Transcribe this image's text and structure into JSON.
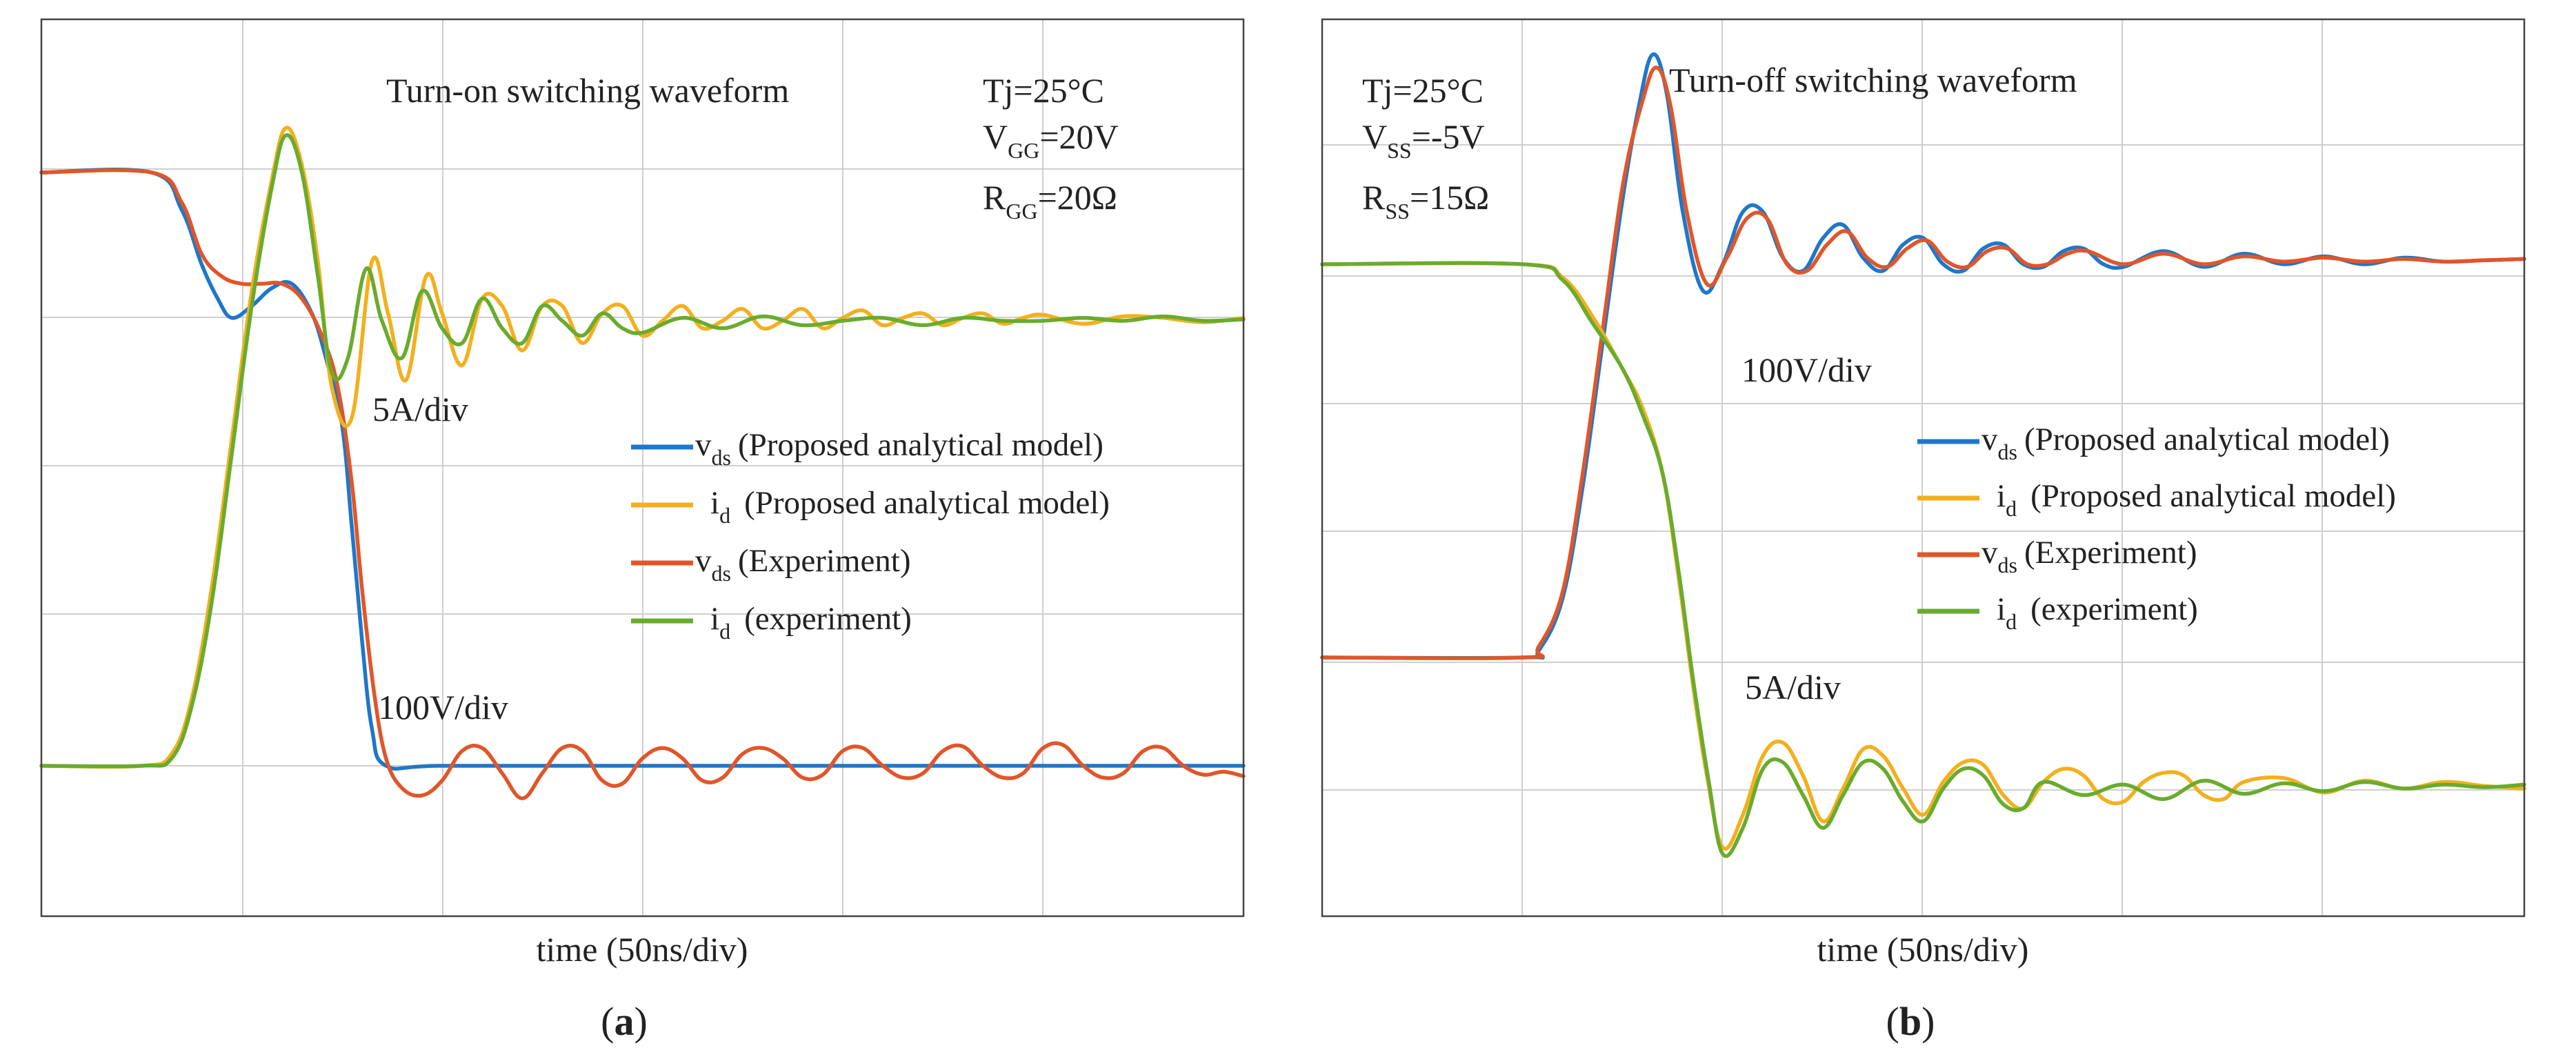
{
  "chart_data": [
    {
      "type": "line",
      "panel": "(a)",
      "panel_letter": "a",
      "title": "Turn-on switching waveform",
      "xlabel": "time (50ns/div)",
      "xlim": [
        0,
        6
      ],
      "ylim": [
        0,
        5
      ],
      "grid": true,
      "conditions": {
        "tj": "Tj=25°C",
        "gate_v": "V",
        "gate_v_sub": "GG",
        "gate_v_val": "=20V",
        "gate_r": "R",
        "gate_r_sub": "GG",
        "gate_r_val": "=20Ω"
      },
      "annotations": {
        "current_scale": "5A/div",
        "voltage_scale": "100V/div"
      },
      "legend": [
        {
          "main": "v",
          "sub": "ds",
          "desc": "(Proposed analytical model)",
          "color": "#1f77c9"
        },
        {
          "main": "i",
          "sub": "d",
          "desc": "(Proposed analytical model)",
          "color": "#f2b01e"
        },
        {
          "main": "v",
          "sub": "ds",
          "desc": "(Experiment)",
          "color": "#e0562a"
        },
        {
          "main": "i",
          "sub": "d",
          "desc": "(experiment)",
          "color": "#6aab2e"
        }
      ],
      "series": [
        {
          "name": "vds (Proposed analytical model)",
          "color": "#1f77c9",
          "x": [
            0,
            0.55,
            0.7,
            0.8,
            0.88,
            0.95,
            1.05,
            1.15,
            1.25,
            1.35,
            1.42,
            1.5,
            1.55,
            1.6,
            1.65,
            1.72,
            2,
            3,
            4,
            5,
            6
          ],
          "values": [
            4.0,
            4.0,
            3.75,
            3.38,
            3.15,
            3.02,
            3.1,
            3.22,
            3.25,
            3.05,
            2.75,
            2.3,
            1.6,
            0.85,
            0.25,
            0.0,
            0.0,
            0.0,
            0.0,
            0.0,
            0.0
          ]
        },
        {
          "name": "vds (Experiment)",
          "color": "#e0562a",
          "x": [
            0,
            0.55,
            0.7,
            0.8,
            0.9,
            1.0,
            1.1,
            1.2,
            1.3,
            1.4,
            1.48,
            1.55,
            1.6,
            1.66,
            1.72,
            1.8,
            1.9,
            2.0,
            2.1,
            2.2,
            2.3,
            2.4,
            2.5,
            2.6,
            2.7,
            2.8,
            2.9,
            3.0,
            3.1,
            3.2,
            3.3,
            3.4,
            3.5,
            3.6,
            3.7,
            3.8,
            3.9,
            4.0,
            4.1,
            4.2,
            4.3,
            4.4,
            4.5,
            4.6,
            4.7,
            4.8,
            4.9,
            5.0,
            5.1,
            5.2,
            5.3,
            5.4,
            5.5,
            5.6,
            5.7,
            5.8,
            5.9,
            6.0
          ],
          "values": [
            4.0,
            4.0,
            3.8,
            3.45,
            3.3,
            3.25,
            3.25,
            3.25,
            3.15,
            2.9,
            2.55,
            1.9,
            1.2,
            0.5,
            0.05,
            -0.15,
            -0.2,
            -0.1,
            0.1,
            0.12,
            -0.05,
            -0.22,
            -0.05,
            0.12,
            0.1,
            -0.1,
            -0.12,
            0.05,
            0.12,
            0.05,
            -0.1,
            -0.08,
            0.08,
            0.12,
            0.05,
            -0.08,
            -0.06,
            0.1,
            0.12,
            0.0,
            -0.08,
            -0.05,
            0.1,
            0.13,
            0.0,
            -0.08,
            -0.05,
            0.12,
            0.14,
            0.0,
            -0.08,
            -0.05,
            0.1,
            0.12,
            0.0,
            -0.06,
            -0.04,
            -0.07
          ]
        },
        {
          "name": "id (Proposed analytical model)",
          "color": "#f2b01e",
          "x": [
            0,
            0.5,
            0.65,
            0.75,
            0.85,
            0.95,
            1.05,
            1.15,
            1.22,
            1.3,
            1.38,
            1.45,
            1.55,
            1.65,
            1.73,
            1.82,
            1.92,
            2.0,
            2.1,
            2.2,
            2.3,
            2.4,
            2.5,
            2.6,
            2.7,
            2.8,
            2.9,
            3.0,
            3.1,
            3.2,
            3.3,
            3.4,
            3.5,
            3.6,
            3.7,
            3.8,
            3.9,
            4.0,
            4.1,
            4.2,
            4.3,
            4.4,
            4.5,
            4.6,
            4.7,
            4.8,
            4.9,
            5.0,
            5.2,
            5.4,
            5.6,
            5.8,
            6.0
          ],
          "values": [
            0.0,
            0.0,
            0.08,
            0.45,
            1.2,
            2.2,
            3.2,
            3.95,
            4.3,
            4.05,
            3.4,
            2.55,
            2.35,
            3.4,
            3.05,
            2.6,
            3.3,
            3.05,
            2.7,
            3.15,
            3.1,
            2.8,
            3.1,
            3.1,
            2.85,
            3.05,
            3.1,
            2.9,
            3.0,
            3.1,
            2.95,
            3.0,
            3.08,
            2.95,
            3.0,
            3.08,
            2.95,
            3.02,
            3.07,
            2.97,
            3.02,
            3.05,
            2.97,
            3.02,
            3.05,
            2.98,
            3.02,
            3.04,
            2.98,
            3.03,
            3.02,
            2.99,
            3.02
          ]
        },
        {
          "name": "id (experiment)",
          "color": "#6aab2e",
          "x": [
            0,
            0.5,
            0.65,
            0.75,
            0.85,
            0.95,
            1.05,
            1.15,
            1.22,
            1.3,
            1.38,
            1.45,
            1.53,
            1.62,
            1.7,
            1.8,
            1.9,
            2.0,
            2.1,
            2.2,
            2.3,
            2.4,
            2.5,
            2.6,
            2.7,
            2.8,
            2.9,
            3.0,
            3.2,
            3.4,
            3.6,
            3.8,
            4.0,
            4.2,
            4.4,
            4.6,
            4.8,
            5.0,
            5.2,
            5.4,
            5.6,
            5.8,
            6.0
          ],
          "values": [
            0.0,
            0.0,
            0.05,
            0.4,
            1.1,
            2.1,
            3.1,
            3.9,
            4.25,
            4.0,
            3.3,
            2.65,
            2.75,
            3.35,
            3.0,
            2.75,
            3.2,
            2.95,
            2.85,
            3.15,
            2.95,
            2.85,
            3.1,
            3.0,
            2.9,
            3.05,
            2.95,
            2.92,
            3.02,
            2.95,
            3.03,
            2.97,
            3.0,
            3.02,
            2.97,
            3.02,
            3.0,
            3.0,
            3.02,
            3.0,
            3.03,
            3.0,
            3.01
          ]
        }
      ]
    },
    {
      "type": "line",
      "panel": "(b)",
      "panel_letter": "b",
      "title": "Turn-off switching waveform",
      "xlabel": "time (50ns/div)",
      "xlim": [
        0,
        6
      ],
      "ylim": [
        0,
        6
      ],
      "grid": true,
      "conditions": {
        "tj": "Tj=25°C",
        "gate_v": "V",
        "gate_v_sub": "SS",
        "gate_v_val": "=-5V",
        "gate_r": "R",
        "gate_r_sub": "SS",
        "gate_r_val": "=15Ω"
      },
      "annotations": {
        "voltage_scale": "100V/div",
        "current_scale": "5A/div"
      },
      "legend": [
        {
          "main": "v",
          "sub": "ds",
          "desc": "(Proposed analytical model)",
          "color": "#1f77c9"
        },
        {
          "main": "i",
          "sub": "d",
          "desc": "(Proposed analytical model)",
          "color": "#f2b01e"
        },
        {
          "main": "v",
          "sub": "ds",
          "desc": "(Experiment)",
          "color": "#e0562a"
        },
        {
          "main": "i",
          "sub": "d",
          "desc": "(experiment)",
          "color": "#6aab2e"
        }
      ],
      "series": [
        {
          "name": "vds (Proposed analytical model)",
          "color": "#1f77c9",
          "x": [
            0,
            1.0,
            1.08,
            1.2,
            1.3,
            1.4,
            1.5,
            1.58,
            1.65,
            1.72,
            1.8,
            1.9,
            2.0,
            2.1,
            2.2,
            2.3,
            2.4,
            2.5,
            2.6,
            2.7,
            2.8,
            2.9,
            3.0,
            3.1,
            3.2,
            3.3,
            3.4,
            3.5,
            3.6,
            3.7,
            3.8,
            3.9,
            4.0,
            4.2,
            4.4,
            4.6,
            4.8,
            5.0,
            5.2,
            5.4,
            5.6,
            5.8,
            6.0
          ],
          "values": [
            1.0,
            1.0,
            1.05,
            1.45,
            2.3,
            3.4,
            4.5,
            5.2,
            5.6,
            5.3,
            4.4,
            3.8,
            4.0,
            4.4,
            4.4,
            4.05,
            3.95,
            4.2,
            4.3,
            4.05,
            3.95,
            4.15,
            4.2,
            4.0,
            3.95,
            4.12,
            4.15,
            4.0,
            3.98,
            4.1,
            4.12,
            4.0,
            3.98,
            4.1,
            3.98,
            4.08,
            4.0,
            4.06,
            4.0,
            4.05,
            4.02,
            4.03,
            4.04
          ]
        },
        {
          "name": "vds (Experiment)",
          "color": "#e0562a",
          "x": [
            0,
            1.0,
            1.08,
            1.2,
            1.3,
            1.4,
            1.5,
            1.6,
            1.67,
            1.74,
            1.82,
            1.92,
            2.02,
            2.12,
            2.22,
            2.32,
            2.42,
            2.52,
            2.62,
            2.72,
            2.82,
            2.92,
            3.02,
            3.12,
            3.22,
            3.32,
            3.42,
            3.52,
            3.62,
            3.72,
            3.82,
            4.0,
            4.2,
            4.4,
            4.6,
            4.8,
            5.0,
            5.2,
            5.4,
            5.6,
            5.8,
            6.0
          ],
          "values": [
            1.0,
            1.0,
            1.08,
            1.5,
            2.4,
            3.5,
            4.6,
            5.25,
            5.5,
            5.2,
            4.4,
            3.85,
            4.05,
            4.35,
            4.35,
            4.0,
            3.95,
            4.15,
            4.25,
            4.05,
            3.98,
            4.12,
            4.18,
            4.02,
            3.98,
            4.1,
            4.12,
            4.0,
            4.0,
            4.08,
            4.1,
            4.0,
            4.08,
            4.0,
            4.06,
            4.02,
            4.05,
            4.02,
            4.04,
            4.02,
            4.03,
            4.04
          ]
        },
        {
          "name": "id (Proposed analytical model)",
          "color": "#f2b01e",
          "x": [
            0,
            1.0,
            1.2,
            1.35,
            1.5,
            1.6,
            1.7,
            1.78,
            1.85,
            1.92,
            2.0,
            2.1,
            2.2,
            2.3,
            2.4,
            2.5,
            2.6,
            2.7,
            2.8,
            2.9,
            3.0,
            3.1,
            3.2,
            3.3,
            3.4,
            3.5,
            3.6,
            3.7,
            3.8,
            3.9,
            4.0,
            4.1,
            4.2,
            4.3,
            4.4,
            4.5,
            4.6,
            4.8,
            5.0,
            5.2,
            5.4,
            5.6,
            5.8,
            6.0
          ],
          "values": [
            4.0,
            4.0,
            3.9,
            3.6,
            3.2,
            2.9,
            2.4,
            1.6,
            0.8,
            0.1,
            -0.45,
            -0.2,
            0.25,
            0.35,
            0.1,
            -0.25,
            0.0,
            0.3,
            0.25,
            0.0,
            -0.2,
            0.05,
            0.2,
            0.18,
            -0.05,
            -0.15,
            0.05,
            0.15,
            0.1,
            -0.08,
            -0.1,
            0.05,
            0.12,
            0.1,
            -0.05,
            -0.08,
            0.05,
            0.08,
            -0.03,
            0.06,
            0.0,
            0.05,
            0.02,
            0.0
          ]
        },
        {
          "name": "id (experiment)",
          "color": "#6aab2e",
          "x": [
            0,
            1.0,
            1.2,
            1.35,
            1.5,
            1.6,
            1.7,
            1.78,
            1.85,
            1.93,
            2.0,
            2.1,
            2.2,
            2.3,
            2.4,
            2.5,
            2.6,
            2.7,
            2.8,
            2.9,
            3.0,
            3.1,
            3.2,
            3.3,
            3.4,
            3.5,
            3.6,
            3.8,
            4.0,
            4.2,
            4.4,
            4.6,
            4.8,
            5.0,
            5.2,
            5.4,
            5.6,
            5.8,
            6.0
          ],
          "values": [
            4.0,
            4.0,
            3.88,
            3.55,
            3.2,
            2.85,
            2.4,
            1.65,
            0.85,
            0.05,
            -0.5,
            -0.3,
            0.15,
            0.2,
            -0.05,
            -0.3,
            -0.05,
            0.2,
            0.15,
            -0.1,
            -0.25,
            0.0,
            0.15,
            0.1,
            -0.12,
            -0.15,
            0.05,
            -0.05,
            0.03,
            -0.08,
            0.06,
            -0.04,
            0.04,
            -0.02,
            0.05,
            0.0,
            0.03,
            0.01,
            0.03
          ]
        }
      ]
    }
  ]
}
